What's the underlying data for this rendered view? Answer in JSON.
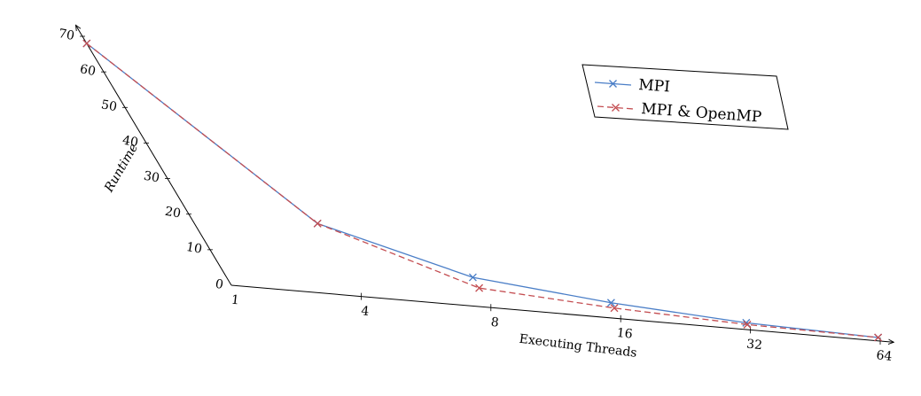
{
  "chart_data": {
    "type": "line",
    "x": [
      1,
      4,
      8,
      16,
      32,
      64
    ],
    "x_tick_labels": [
      "1",
      "4",
      "8",
      "16",
      "32",
      "64"
    ],
    "y_tick_labels": [
      "0",
      "10",
      "20",
      "30",
      "40",
      "50",
      "60",
      "70"
    ],
    "ylim": [
      0,
      70
    ],
    "xlabel": "Executing Threads",
    "ylabel": "Runtime",
    "legend_position": "top-right",
    "series": [
      {
        "name": "MPI",
        "values": [
          68,
          20.5,
          8.5,
          4.5,
          2,
          1
        ],
        "color": "#4a7ec7",
        "style": "solid"
      },
      {
        "name": "MPI & OpenMP",
        "values": [
          68,
          20.5,
          5.5,
          3,
          1.5,
          1
        ],
        "color": "#c44e52",
        "style": "dashed"
      }
    ]
  }
}
